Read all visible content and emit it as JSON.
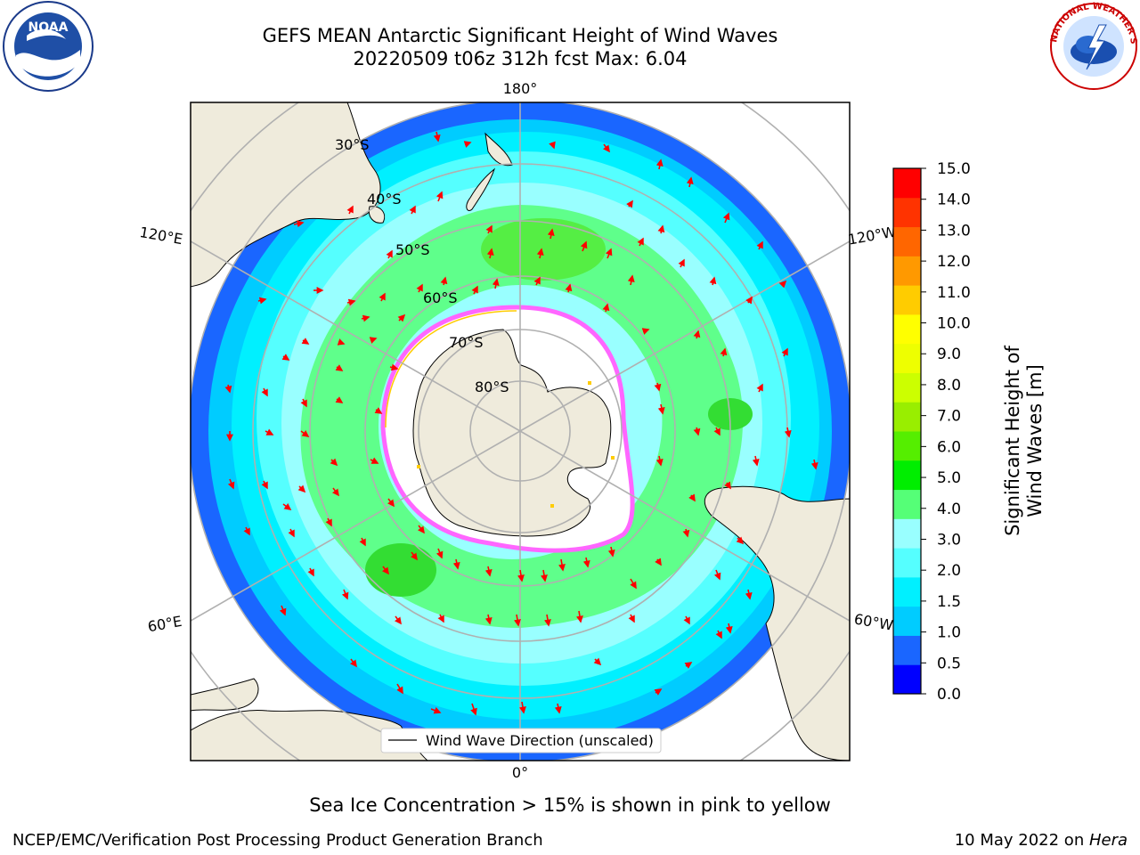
{
  "title": {
    "line1": "GEFS MEAN Antarctic Significant Height of Wind Waves",
    "line2": "20220509 t06z 312h fcst   Max: 6.04"
  },
  "logos": {
    "left": {
      "name": "noaa-logo",
      "text": "NOAA"
    },
    "right": {
      "name": "nws-logo",
      "text": "NATIONAL WEATHER SERVICE"
    }
  },
  "map": {
    "projection": "south-polar-stereographic",
    "longitude_labels": [
      "180°",
      "120°E",
      "120°W",
      "60°E",
      "60°W",
      "0°"
    ],
    "latitude_labels": [
      "30°S",
      "40°S",
      "50°S",
      "60°S",
      "70°S",
      "80°S"
    ],
    "legend": "Wind Wave Direction (unscaled)",
    "arrow_color": "#ff0000",
    "land_color": "#efebdc",
    "ice_colors": [
      "#ff66ff",
      "#ffff00"
    ]
  },
  "colorbar": {
    "title": "Significant Height of Wind Waves [m]",
    "ticks": [
      "0.0",
      "0.5",
      "1.0",
      "1.5",
      "2.0",
      "3.0",
      "4.0",
      "5.0",
      "6.0",
      "7.0",
      "8.0",
      "9.0",
      "10.0",
      "11.0",
      "12.0",
      "13.0",
      "14.0",
      "15.0"
    ],
    "colors": [
      "#0000ff",
      "#1a66ff",
      "#00ccff",
      "#00f0ff",
      "#55ffff",
      "#99ffff",
      "#55ff77",
      "#00ee00",
      "#55ee00",
      "#99ee00",
      "#ccff00",
      "#eeff00",
      "#ffff00",
      "#ffcc00",
      "#ff9900",
      "#ff6600",
      "#ff3300",
      "#ff0000"
    ]
  },
  "subtitle": "Sea Ice Concentration > 15% is shown in pink to yellow",
  "footer": {
    "left": "NCEP/EMC/Verification Post Processing Product Generation Branch",
    "date": "10 May 2022 on ",
    "host": "Hera"
  }
}
